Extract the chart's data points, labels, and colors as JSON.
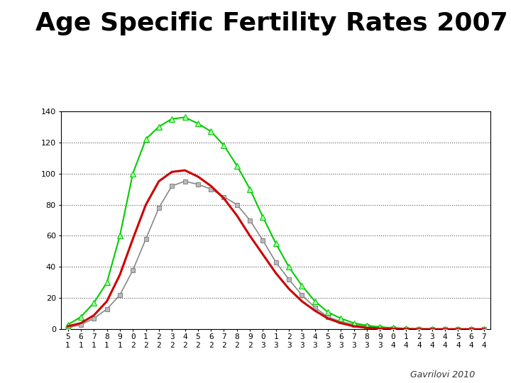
{
  "title": "Age Specific Fertility Rates 2007",
  "subtitle": "Gavrilovi 2010",
  "ages": [
    15,
    16,
    17,
    18,
    19,
    20,
    21,
    22,
    23,
    24,
    25,
    26,
    27,
    28,
    29,
    30,
    31,
    32,
    33,
    34,
    35,
    36,
    37,
    38,
    39,
    40,
    41,
    42,
    43,
    44,
    45,
    46,
    47
  ],
  "total": [
    2,
    4,
    9,
    18,
    35,
    58,
    80,
    95,
    101,
    102,
    98,
    92,
    84,
    73,
    60,
    48,
    36,
    26,
    18,
    12,
    7,
    4,
    2,
    1,
    0.5,
    0.3,
    0.2,
    0.1,
    0.1,
    0.1,
    0.1,
    0.1,
    0.1
  ],
  "urban": [
    1,
    3,
    7,
    13,
    22,
    38,
    58,
    78,
    92,
    95,
    93,
    90,
    85,
    80,
    70,
    57,
    43,
    32,
    22,
    14,
    8,
    5,
    3,
    2,
    1,
    0.5,
    0.3,
    0.2,
    0.1,
    0.1,
    0.1,
    0.1,
    0.1
  ],
  "rural": [
    3,
    8,
    17,
    30,
    60,
    100,
    122,
    130,
    135,
    136,
    132,
    127,
    118,
    105,
    90,
    72,
    55,
    40,
    28,
    18,
    11,
    7,
    4,
    2.5,
    1.5,
    1,
    0.5,
    0.3,
    0.2,
    0.1,
    0.1,
    0.1,
    0.1
  ],
  "ylim": [
    0,
    140
  ],
  "yticks": [
    0,
    20,
    40,
    60,
    80,
    100,
    120,
    140
  ],
  "total_color": "#cc0000",
  "urban_color": "#888888",
  "rural_color": "#00cc00",
  "bg_color": "#ffffff",
  "plot_bg": "#ffffff",
  "grid_color": "#555555",
  "title_fontsize": 26,
  "tick_fontsize": 8,
  "legend_fontsize": 10
}
